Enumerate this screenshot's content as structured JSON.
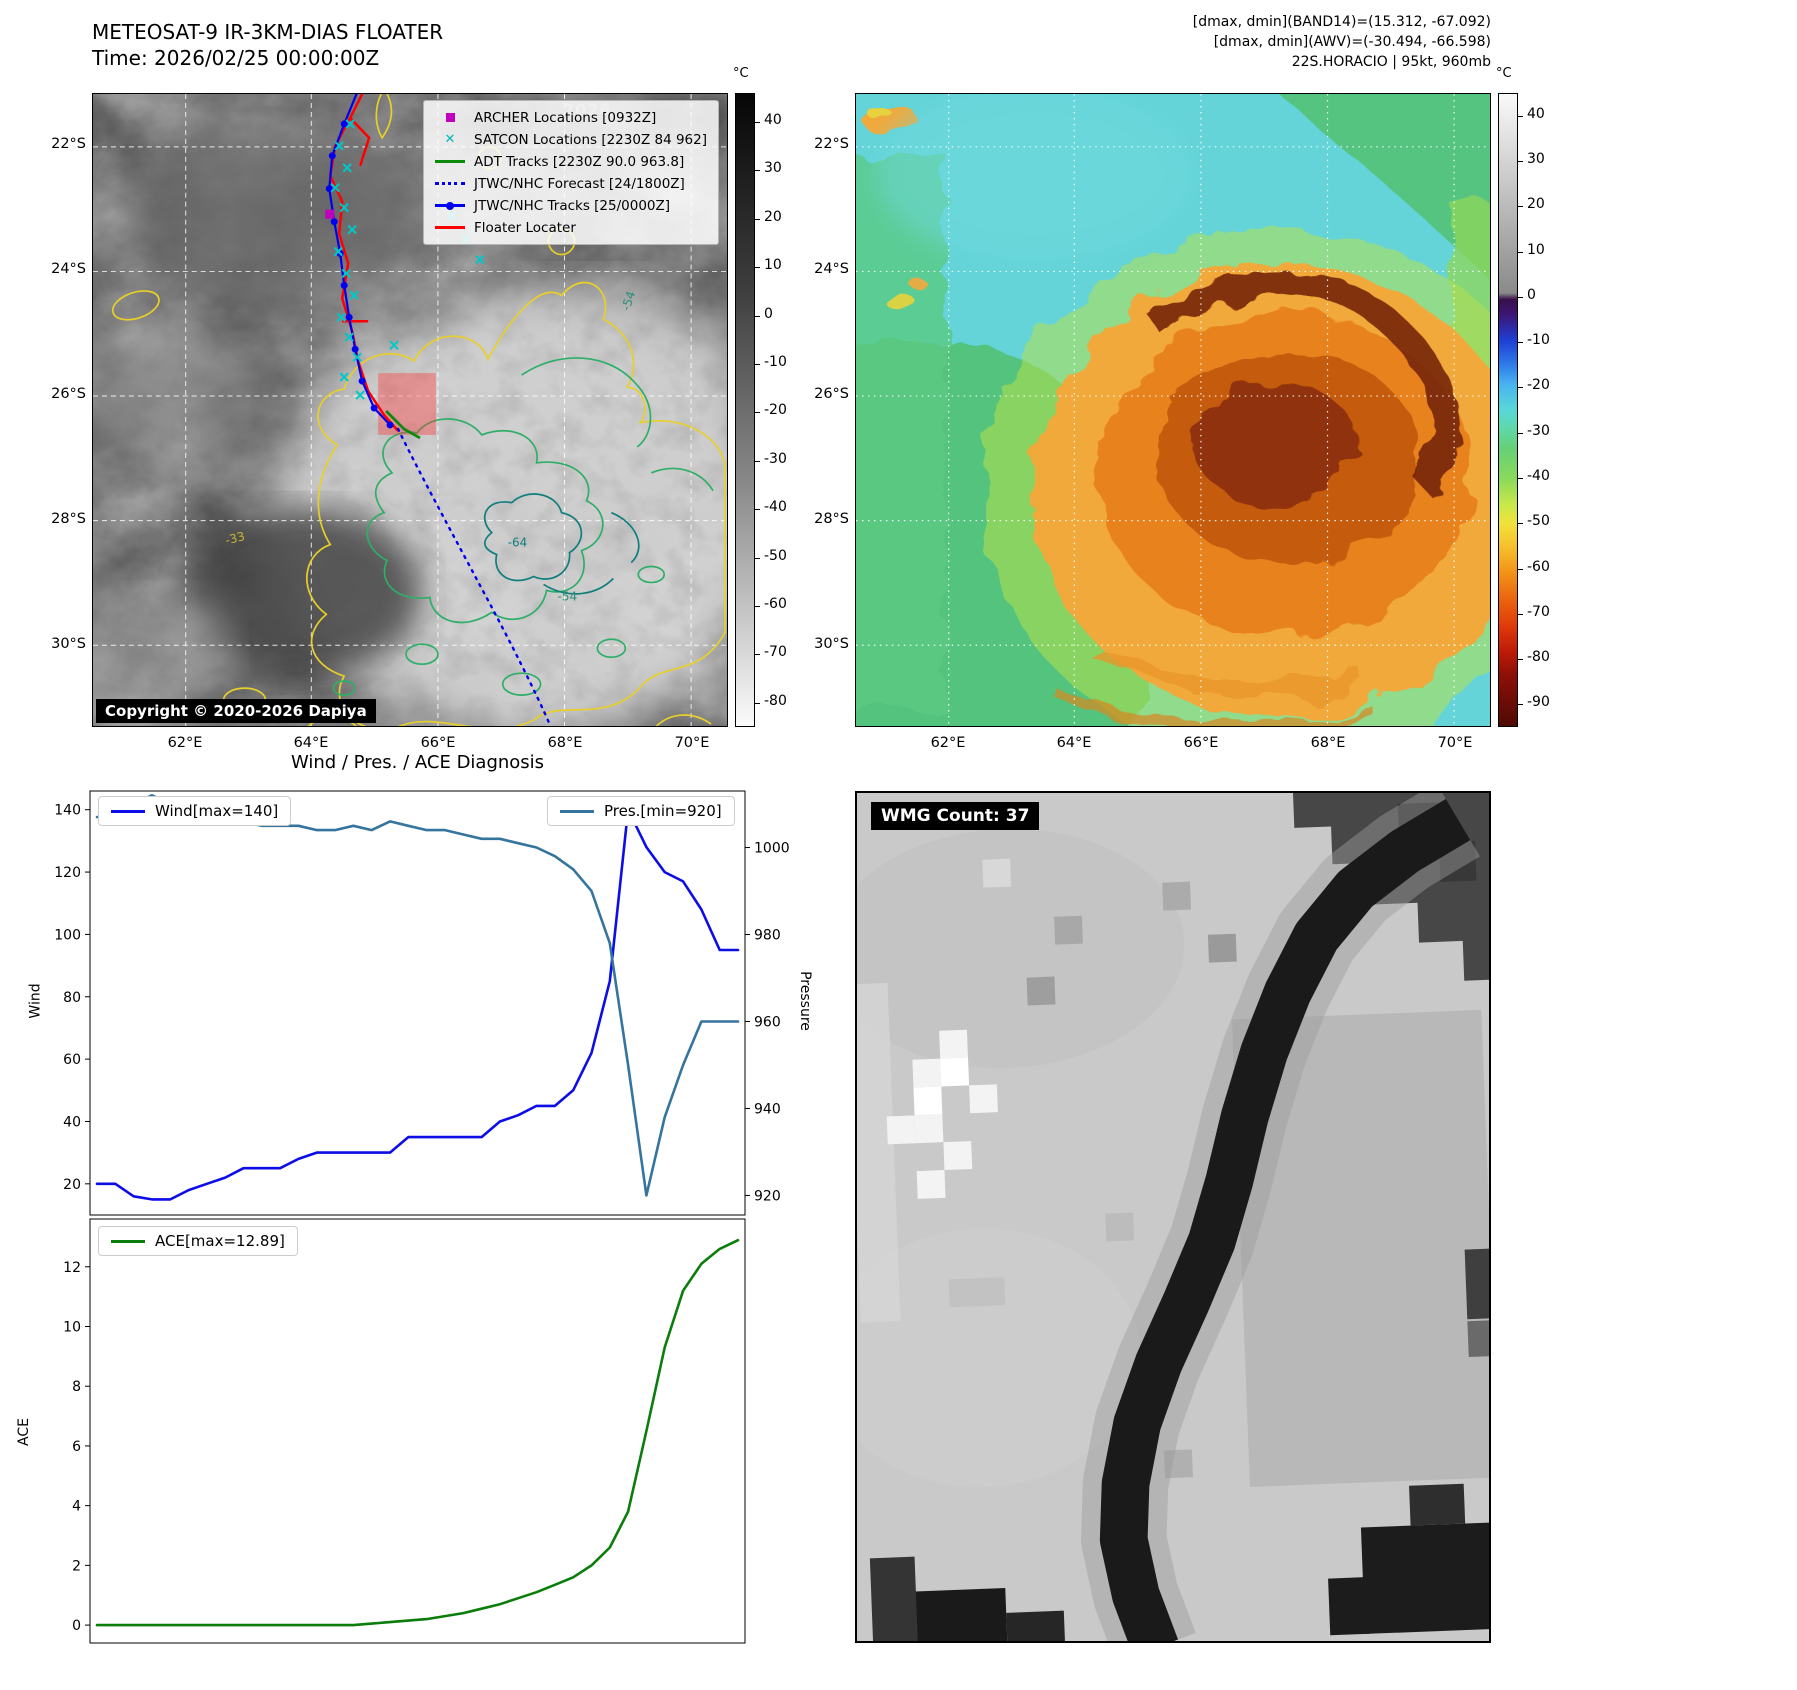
{
  "ir_floater": {
    "title": "METEOSAT-9 IR-3KM-DIAS FLOATER",
    "subtitle": "Time: 2026/02/25 00:00:00Z",
    "watermark": "2026",
    "copyright": "Copyright © 2020-2026 Dapiya",
    "legend": [
      {
        "label": "ARCHER Locations [0932Z]",
        "marker": "square",
        "color": "#bf00bf"
      },
      {
        "label": "SATCON Locations [2230Z 84 962]",
        "marker": "x",
        "color": "#00b8b8"
      },
      {
        "label": "ADT Tracks [2230Z 90.0 963.8]",
        "marker": "line",
        "color": "#0c8a0c"
      },
      {
        "label": "JTWC/NHC Forecast [24/1800Z]",
        "marker": "dotted-line",
        "color": "#0000ee"
      },
      {
        "label": "JTWC/NHC Tracks [25/0000Z]",
        "marker": "line-circle",
        "color": "#0000ee"
      },
      {
        "label": "Floater Locater",
        "marker": "line",
        "color": "#ff0000"
      }
    ],
    "lat_ticks": [
      "22°S",
      "24°S",
      "26°S",
      "28°S",
      "30°S"
    ],
    "lon_ticks": [
      "62°E",
      "64°E",
      "66°E",
      "68°E",
      "70°E"
    ],
    "contour_labels": [
      "-54",
      "-64",
      "-54",
      "-33"
    ],
    "colorbar": {
      "unit": "°C",
      "ticks": [
        40,
        30,
        20,
        10,
        0,
        -10,
        -20,
        -30,
        -40,
        -50,
        -60,
        -70,
        -80
      ],
      "range": [
        46,
        -85
      ]
    }
  },
  "ir_enhanced": {
    "header": [
      "[dmax, dmin](BAND14)=(15.312, -67.092)",
      "[dmax, dmin](AWV)=(-30.494, -66.598)",
      "22S.HORACIO | 95kt, 960mb"
    ],
    "lat_ticks": [
      "22°S",
      "24°S",
      "26°S",
      "28°S",
      "30°S"
    ],
    "lon_ticks": [
      "62°E",
      "64°E",
      "66°E",
      "68°E",
      "70°E"
    ],
    "colorbar": {
      "unit": "°C",
      "ticks": [
        40,
        30,
        20,
        10,
        0,
        -10,
        -20,
        -30,
        -40,
        -50,
        -60,
        -70,
        -80,
        -90
      ],
      "range": [
        45,
        -95
      ]
    }
  },
  "wmg": {
    "label": "WMG Count: 37"
  },
  "chart_data": [
    {
      "type": "line",
      "title": "Wind / Pres. / ACE Diagnosis",
      "grid": false,
      "x": [
        0,
        1,
        2,
        3,
        4,
        5,
        6,
        7,
        8,
        9,
        10,
        11,
        12,
        13,
        14,
        15,
        16,
        17,
        18,
        19,
        20,
        21,
        22,
        23,
        24,
        25,
        26,
        27,
        28,
        29,
        30,
        31,
        32,
        33,
        34,
        35
      ],
      "series": [
        {
          "name": "Wind[max=140]",
          "key": "wind-line",
          "color": "#0d0de8",
          "axis": "left",
          "values": [
            20,
            20,
            16,
            15,
            15,
            18,
            20,
            22,
            25,
            25,
            25,
            28,
            30,
            30,
            30,
            30,
            30,
            35,
            35,
            35,
            35,
            35,
            40,
            42,
            45,
            45,
            50,
            62,
            85,
            140,
            128,
            120,
            117,
            108,
            95,
            95
          ]
        },
        {
          "name": "Pres.[min=920]",
          "key": "pressure-line",
          "color": "#35749e",
          "axis": "right",
          "values": [
            1007,
            1008,
            1010,
            1012,
            1010,
            1008,
            1007,
            1006,
            1006,
            1005,
            1005,
            1005,
            1004,
            1004,
            1005,
            1004,
            1006,
            1005,
            1004,
            1004,
            1003,
            1002,
            1002,
            1001,
            1000,
            998,
            995,
            990,
            978,
            950,
            920,
            938,
            950,
            960,
            960,
            960
          ]
        }
      ],
      "left_axis": {
        "label": "Wind",
        "ticks": [
          20,
          40,
          60,
          80,
          100,
          120,
          140
        ],
        "range": [
          10,
          146
        ]
      },
      "right_axis": {
        "label": "Pressure",
        "ticks": [
          920,
          940,
          960,
          980,
          1000
        ],
        "range": [
          915.5,
          1013
        ]
      },
      "legend_position": [
        "upper left",
        "upper right"
      ]
    },
    {
      "type": "line",
      "grid": false,
      "x": [
        0,
        1,
        2,
        3,
        4,
        5,
        6,
        7,
        8,
        9,
        10,
        11,
        12,
        13,
        14,
        15,
        16,
        17,
        18,
        19,
        20,
        21,
        22,
        23,
        24,
        25,
        26,
        27,
        28,
        29,
        30,
        31,
        32,
        33,
        34,
        35
      ],
      "series": [
        {
          "name": "ACE[max=12.89]",
          "key": "ace-line",
          "color": "#0a7d0a",
          "axis": "left",
          "values": [
            0,
            0,
            0,
            0,
            0,
            0,
            0,
            0,
            0,
            0,
            0,
            0,
            0,
            0,
            0,
            0.05,
            0.1,
            0.15,
            0.2,
            0.3,
            0.4,
            0.55,
            0.7,
            0.9,
            1.1,
            1.35,
            1.6,
            2.0,
            2.6,
            3.8,
            6.5,
            9.3,
            11.2,
            12.1,
            12.6,
            12.89
          ]
        }
      ],
      "left_axis": {
        "label": "ACE",
        "ticks": [
          0,
          2,
          4,
          6,
          8,
          10,
          12
        ],
        "range": [
          -0.6,
          13.6
        ]
      },
      "legend_position": [
        "upper left"
      ]
    }
  ]
}
